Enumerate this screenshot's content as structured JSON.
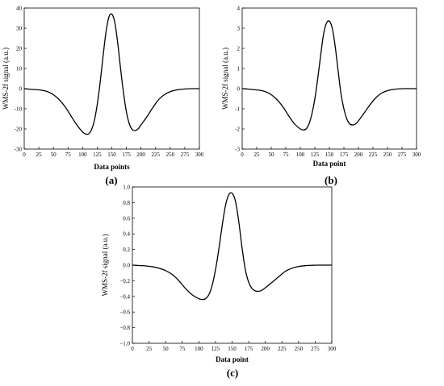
{
  "chart_data": [
    {
      "type": "line",
      "panel_label": "(a)",
      "xlabel": "Data points",
      "ylabel": "WMS-2f signal (a.u.)",
      "xlim": [
        0,
        300
      ],
      "ylim": [
        -30,
        40
      ],
      "xticks": [
        0,
        25,
        50,
        75,
        100,
        125,
        150,
        175,
        200,
        225,
        250,
        275,
        300
      ],
      "yticks": [
        -30,
        -20,
        -10,
        0,
        10,
        20,
        30,
        40
      ],
      "x": [
        0,
        10,
        20,
        30,
        40,
        50,
        60,
        70,
        80,
        90,
        100,
        105,
        110,
        115,
        120,
        125,
        130,
        135,
        140,
        145,
        150,
        155,
        160,
        165,
        170,
        175,
        180,
        185,
        190,
        195,
        200,
        210,
        220,
        230,
        240,
        250,
        260,
        270,
        280,
        290,
        300
      ],
      "y": [
        0,
        -0.3,
        -0.5,
        -0.8,
        -1.5,
        -3,
        -5.5,
        -9,
        -13.5,
        -18,
        -21.5,
        -22.5,
        -22.5,
        -20.5,
        -16,
        -8,
        3,
        16,
        28,
        35.5,
        37,
        33,
        23,
        10,
        -2,
        -11.5,
        -17.5,
        -20.3,
        -20.8,
        -20,
        -18,
        -14,
        -9.5,
        -5.5,
        -3,
        -1.5,
        -0.7,
        -0.3,
        -0.1,
        0,
        0
      ]
    },
    {
      "type": "line",
      "panel_label": "(b)",
      "xlabel": "Data point",
      "ylabel": "WMS-2f signal (a.u.)",
      "xlim": [
        0,
        300
      ],
      "ylim": [
        -3,
        4
      ],
      "xticks": [
        0,
        25,
        50,
        75,
        100,
        125,
        150,
        175,
        200,
        225,
        250,
        275,
        300
      ],
      "yticks": [
        -3,
        -2,
        -1,
        0,
        1,
        2,
        3,
        4
      ],
      "x": [
        0,
        10,
        20,
        30,
        40,
        50,
        60,
        70,
        80,
        90,
        100,
        105,
        110,
        115,
        120,
        125,
        130,
        135,
        140,
        145,
        150,
        155,
        160,
        165,
        170,
        175,
        180,
        185,
        190,
        195,
        200,
        210,
        220,
        230,
        240,
        250,
        260,
        270,
        280,
        290,
        300
      ],
      "y": [
        0,
        -0.02,
        -0.05,
        -0.08,
        -0.15,
        -0.3,
        -0.55,
        -0.9,
        -1.35,
        -1.75,
        -2.0,
        -2.05,
        -2.0,
        -1.75,
        -1.25,
        -0.5,
        0.5,
        1.65,
        2.7,
        3.25,
        3.35,
        3.0,
        2.1,
        0.9,
        -0.25,
        -1.0,
        -1.5,
        -1.75,
        -1.8,
        -1.75,
        -1.6,
        -1.2,
        -0.8,
        -0.45,
        -0.22,
        -0.1,
        -0.04,
        -0.01,
        0,
        0,
        0
      ]
    },
    {
      "type": "line",
      "panel_label": "(c)",
      "xlabel": "Data point",
      "ylabel": "WMS-2f signal  (a.u.)",
      "xlim": [
        0,
        300
      ],
      "ylim": [
        -1.0,
        1.0
      ],
      "xticks": [
        0,
        25,
        50,
        75,
        100,
        125,
        150,
        175,
        200,
        225,
        250,
        275,
        300
      ],
      "yticks": [
        -1.0,
        -0.8,
        -0.6,
        -0.4,
        -0.2,
        0.0,
        0.2,
        0.4,
        0.6,
        0.8,
        1.0
      ],
      "ytick_labels": [
        "−1.0",
        "−0.8",
        "−0.6",
        "−0.4",
        "−0.2",
        "0.0",
        "0.2",
        "0.4",
        "0.6",
        "0.8",
        "1.0"
      ],
      "x": [
        0,
        10,
        20,
        30,
        40,
        50,
        60,
        70,
        80,
        90,
        100,
        105,
        110,
        115,
        120,
        125,
        130,
        135,
        140,
        145,
        150,
        155,
        160,
        165,
        170,
        175,
        180,
        185,
        190,
        195,
        200,
        210,
        220,
        230,
        240,
        250,
        260,
        270,
        280,
        290,
        300
      ],
      "y": [
        0,
        -0.005,
        -0.01,
        -0.02,
        -0.04,
        -0.07,
        -0.12,
        -0.2,
        -0.3,
        -0.38,
        -0.43,
        -0.44,
        -0.43,
        -0.38,
        -0.26,
        -0.06,
        0.2,
        0.5,
        0.76,
        0.9,
        0.92,
        0.82,
        0.56,
        0.22,
        -0.06,
        -0.22,
        -0.3,
        -0.33,
        -0.335,
        -0.32,
        -0.29,
        -0.22,
        -0.15,
        -0.08,
        -0.04,
        -0.018,
        -0.007,
        -0.002,
        0,
        0,
        0
      ]
    }
  ]
}
